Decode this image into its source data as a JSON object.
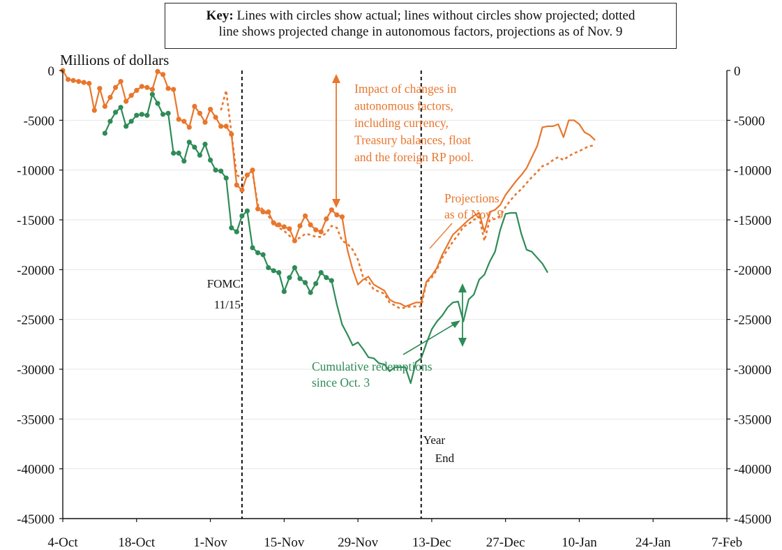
{
  "key": {
    "label": "Key:",
    "line1": "Lines with circles show actual;  lines without circles show projected; dotted",
    "line2": "line shows projected change in autonomous factors, projections as of Nov. 9"
  },
  "colors": {
    "orange": "#e8762c",
    "green": "#2e8b57",
    "axis": "#111111",
    "grid": "#e6e6e6"
  },
  "chart_data": {
    "type": "line",
    "ylabel": "Millions of dollars",
    "ylim": [
      -45000,
      0
    ],
    "y_ticks_left": [
      "0",
      "-5000",
      "-10000",
      "-15000",
      "-20000",
      "-25000",
      "-30000",
      "-35000",
      "-40000",
      "-45000"
    ],
    "y_ticks_right": [
      "0",
      "-5000",
      "-10000",
      "-15000",
      "-20000",
      "-25000",
      "-30000",
      "-35000",
      "-40000",
      "-45000"
    ],
    "x_ticks": [
      "4-Oct",
      "18-Oct",
      "1-Nov",
      "15-Nov",
      "29-Nov",
      "13-Dec",
      "27-Dec",
      "10-Jan",
      "24-Jan",
      "7-Feb"
    ],
    "x_range_days": [
      0,
      126
    ],
    "grid": true,
    "series": [
      {
        "style": "orange-actual-circles",
        "points": [
          [
            0,
            0
          ],
          [
            1,
            -900
          ],
          [
            2,
            -1000
          ],
          [
            3,
            -1100
          ],
          [
            4,
            -1200
          ],
          [
            5,
            -1300
          ],
          [
            6,
            -4000
          ],
          [
            7,
            -1800
          ],
          [
            8,
            -3600
          ],
          [
            9,
            -2700
          ],
          [
            10,
            -1700
          ],
          [
            11,
            -1100
          ],
          [
            12,
            -3100
          ],
          [
            13,
            -2500
          ],
          [
            14,
            -2000
          ],
          [
            15,
            -1600
          ],
          [
            16,
            -1700
          ],
          [
            17,
            -1900
          ],
          [
            18,
            -100
          ],
          [
            19,
            -400
          ],
          [
            20,
            -1800
          ],
          [
            21,
            -1900
          ],
          [
            22,
            -4900
          ],
          [
            23,
            -5100
          ],
          [
            24,
            -5700
          ],
          [
            25,
            -3600
          ],
          [
            26,
            -4300
          ],
          [
            27,
            -5200
          ],
          [
            28,
            -3900
          ],
          [
            29,
            -4700
          ],
          [
            30,
            -5600
          ],
          [
            31,
            -5600
          ],
          [
            32,
            -6400
          ],
          [
            33,
            -11500
          ],
          [
            34,
            -12000
          ],
          [
            35,
            -10500
          ],
          [
            36,
            -10000
          ],
          [
            37,
            -13900
          ],
          [
            38,
            -14200
          ],
          [
            39,
            -14200
          ],
          [
            40,
            -15300
          ],
          [
            41,
            -15500
          ],
          [
            42,
            -15700
          ],
          [
            43,
            -15900
          ],
          [
            44,
            -17100
          ],
          [
            45,
            -15600
          ],
          [
            46,
            -14600
          ],
          [
            47,
            -15500
          ],
          [
            48,
            -16000
          ],
          [
            49,
            -16200
          ],
          [
            50,
            -14900
          ],
          [
            51,
            -14000
          ],
          [
            52,
            -14500
          ],
          [
            53,
            -14700
          ]
        ]
      },
      {
        "style": "orange-projected",
        "points": [
          [
            53,
            -14700
          ],
          [
            54,
            -18000
          ],
          [
            55,
            -20000
          ],
          [
            56,
            -21500
          ],
          [
            57,
            -21000
          ],
          [
            58,
            -20700
          ],
          [
            59,
            -21500
          ],
          [
            60,
            -21800
          ],
          [
            61,
            -22100
          ],
          [
            62,
            -23000
          ],
          [
            63,
            -23300
          ],
          [
            64,
            -23400
          ],
          [
            65,
            -23700
          ],
          [
            66,
            -23500
          ],
          [
            67,
            -23300
          ],
          [
            68,
            -23300
          ],
          [
            69,
            -21200
          ],
          [
            70,
            -20600
          ],
          [
            71,
            -19800
          ],
          [
            72,
            -18500
          ],
          [
            73,
            -17500
          ],
          [
            74,
            -16500
          ],
          [
            75,
            -16000
          ],
          [
            76,
            -15500
          ],
          [
            77,
            -15000
          ],
          [
            78,
            -14600
          ],
          [
            79,
            -14300
          ],
          [
            80,
            -16200
          ],
          [
            81,
            -14200
          ],
          [
            82,
            -14000
          ],
          [
            83,
            -13500
          ],
          [
            84,
            -12500
          ],
          [
            85,
            -11800
          ],
          [
            86,
            -11100
          ],
          [
            87,
            -10500
          ],
          [
            88,
            -9800
          ],
          [
            89,
            -8700
          ],
          [
            90,
            -7600
          ],
          [
            91,
            -5700
          ],
          [
            92,
            -5600
          ],
          [
            93,
            -5600
          ],
          [
            94,
            -5400
          ],
          [
            95,
            -6700
          ],
          [
            96,
            -5000
          ],
          [
            97,
            -5000
          ],
          [
            98,
            -5400
          ],
          [
            99,
            -6200
          ],
          [
            100,
            -6500
          ],
          [
            101,
            -7000
          ]
        ]
      },
      {
        "style": "orange-dotted",
        "points": [
          [
            30,
            -4000
          ],
          [
            31,
            -2000
          ],
          [
            32,
            -6300
          ],
          [
            33,
            -10500
          ],
          [
            34,
            -10800
          ],
          [
            35,
            -10600
          ],
          [
            36,
            -10200
          ],
          [
            37,
            -13500
          ],
          [
            38,
            -14000
          ],
          [
            39,
            -14600
          ],
          [
            40,
            -15400
          ],
          [
            41,
            -15800
          ],
          [
            42,
            -16100
          ],
          [
            43,
            -16600
          ],
          [
            44,
            -17000
          ],
          [
            45,
            -16800
          ],
          [
            46,
            -16400
          ],
          [
            47,
            -16500
          ],
          [
            48,
            -16700
          ],
          [
            49,
            -16700
          ],
          [
            50,
            -16300
          ],
          [
            51,
            -15600
          ],
          [
            52,
            -15800
          ],
          [
            53,
            -17100
          ],
          [
            54,
            -17400
          ],
          [
            55,
            -18000
          ],
          [
            56,
            -19000
          ],
          [
            57,
            -20800
          ],
          [
            58,
            -21200
          ],
          [
            59,
            -22000
          ],
          [
            60,
            -22200
          ],
          [
            61,
            -22400
          ],
          [
            62,
            -23300
          ],
          [
            63,
            -23600
          ],
          [
            64,
            -23900
          ],
          [
            65,
            -23800
          ],
          [
            66,
            -23700
          ],
          [
            67,
            -23700
          ],
          [
            68,
            -23700
          ],
          [
            69,
            -21300
          ],
          [
            70,
            -20800
          ],
          [
            71,
            -20000
          ],
          [
            72,
            -18800
          ],
          [
            73,
            -18000
          ],
          [
            74,
            -17200
          ],
          [
            75,
            -16500
          ],
          [
            76,
            -15700
          ],
          [
            77,
            -15400
          ],
          [
            78,
            -15000
          ],
          [
            79,
            -14700
          ],
          [
            80,
            -17100
          ],
          [
            81,
            -15000
          ],
          [
            82,
            -14900
          ],
          [
            83,
            -14600
          ],
          [
            84,
            -13700
          ],
          [
            85,
            -13000
          ],
          [
            86,
            -12400
          ],
          [
            87,
            -11900
          ],
          [
            88,
            -11300
          ],
          [
            89,
            -10700
          ],
          [
            90,
            -10200
          ],
          [
            91,
            -9600
          ],
          [
            92,
            -9400
          ],
          [
            93,
            -9000
          ],
          [
            94,
            -8700
          ],
          [
            95,
            -9000
          ],
          [
            96,
            -8600
          ],
          [
            97,
            -8300
          ],
          [
            98,
            -8100
          ],
          [
            99,
            -7800
          ],
          [
            100,
            -7600
          ],
          [
            101,
            -7500
          ]
        ]
      },
      {
        "style": "green-actual-circles",
        "points": [
          [
            8,
            -6300
          ],
          [
            9,
            -5100
          ],
          [
            10,
            -4200
          ],
          [
            11,
            -3700
          ],
          [
            12,
            -5600
          ],
          [
            13,
            -5100
          ],
          [
            14,
            -4500
          ],
          [
            15,
            -4400
          ],
          [
            16,
            -4500
          ],
          [
            17,
            -2400
          ],
          [
            18,
            -3300
          ],
          [
            19,
            -4400
          ],
          [
            20,
            -4300
          ],
          [
            21,
            -8300
          ],
          [
            22,
            -8300
          ],
          [
            23,
            -9100
          ],
          [
            24,
            -7200
          ],
          [
            25,
            -7700
          ],
          [
            26,
            -8500
          ],
          [
            27,
            -7400
          ],
          [
            28,
            -9000
          ],
          [
            29,
            -10000
          ],
          [
            30,
            -10100
          ],
          [
            31,
            -10800
          ],
          [
            32,
            -15800
          ],
          [
            33,
            -16200
          ],
          [
            34,
            -14600
          ],
          [
            35,
            -14100
          ],
          [
            36,
            -17800
          ],
          [
            37,
            -18300
          ],
          [
            38,
            -18500
          ],
          [
            39,
            -19800
          ],
          [
            40,
            -20100
          ],
          [
            41,
            -20300
          ],
          [
            42,
            -22200
          ],
          [
            43,
            -20800
          ],
          [
            44,
            -19800
          ],
          [
            45,
            -20900
          ],
          [
            46,
            -21300
          ],
          [
            47,
            -22300
          ],
          [
            48,
            -21400
          ],
          [
            49,
            -20300
          ],
          [
            50,
            -20800
          ],
          [
            51,
            -21100
          ]
        ]
      },
      {
        "style": "green-projected",
        "points": [
          [
            51,
            -21100
          ],
          [
            52,
            -23500
          ],
          [
            53,
            -25500
          ],
          [
            54,
            -26500
          ],
          [
            55,
            -27600
          ],
          [
            56,
            -27300
          ],
          [
            57,
            -28000
          ],
          [
            58,
            -28800
          ],
          [
            59,
            -28900
          ],
          [
            60,
            -29400
          ],
          [
            61,
            -29500
          ],
          [
            62,
            -30200
          ],
          [
            63,
            -29800
          ],
          [
            64,
            -29800
          ],
          [
            65,
            -29800
          ],
          [
            66,
            -31400
          ],
          [
            67,
            -29300
          ],
          [
            68,
            -28900
          ],
          [
            69,
            -27400
          ],
          [
            70,
            -26000
          ],
          [
            71,
            -25200
          ],
          [
            72,
            -24600
          ],
          [
            73,
            -23800
          ],
          [
            74,
            -23300
          ],
          [
            75,
            -23200
          ],
          [
            76,
            -25200
          ],
          [
            77,
            -23000
          ],
          [
            78,
            -22500
          ],
          [
            79,
            -21000
          ],
          [
            80,
            -20500
          ],
          [
            81,
            -19200
          ],
          [
            82,
            -18200
          ],
          [
            83,
            -16000
          ],
          [
            84,
            -14400
          ],
          [
            85,
            -14300
          ],
          [
            86,
            -14300
          ],
          [
            87,
            -16400
          ],
          [
            88,
            -18000
          ],
          [
            89,
            -18200
          ],
          [
            90,
            -18800
          ],
          [
            91,
            -19400
          ],
          [
            92,
            -20300
          ]
        ]
      }
    ],
    "vlines": [
      {
        "x": 34,
        "label_line1": "FOMC",
        "label_line2": "11/15"
      },
      {
        "x": 68,
        "label_line1": "Year",
        "label_line2": "End"
      }
    ],
    "annotations": [
      {
        "id": "autonomous",
        "lines": [
          "Impact of changes in",
          "autonomous factors,",
          "including currency,",
          "Treasury balances, float",
          "and the foreign RP pool."
        ]
      },
      {
        "id": "projections",
        "lines": [
          "Projections",
          "as of Nov. 9"
        ]
      },
      {
        "id": "redemptions",
        "lines": [
          "Cumulative redemptions",
          "since Oct. 3"
        ]
      }
    ]
  }
}
